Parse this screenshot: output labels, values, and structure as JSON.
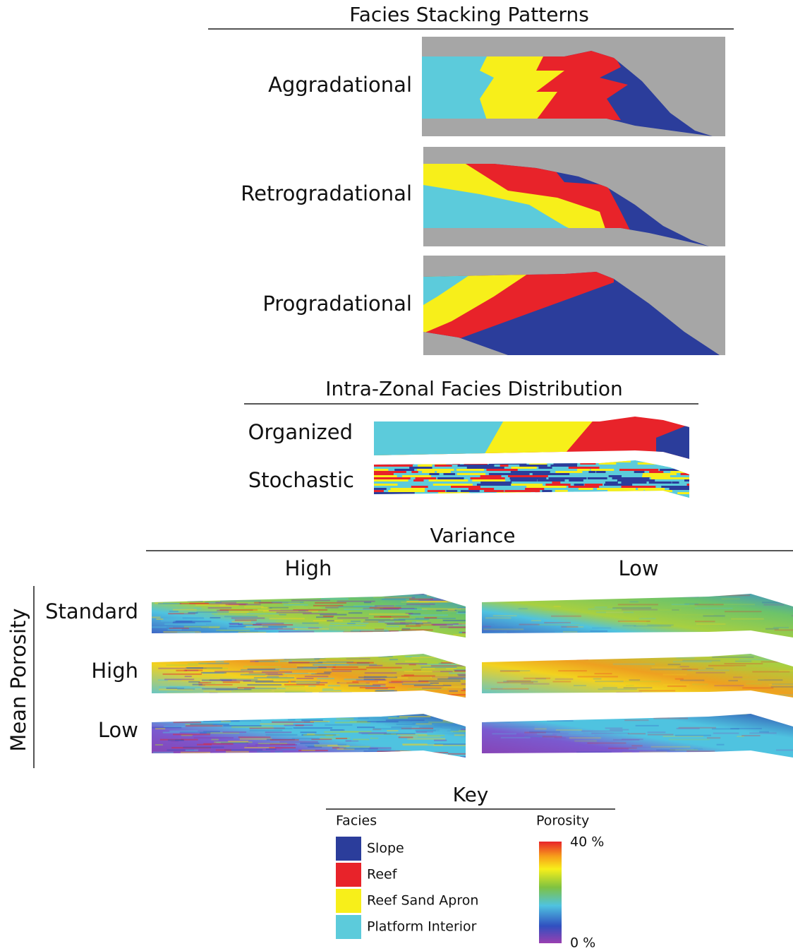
{
  "stacking": {
    "title": "Facies Stacking Patterns",
    "rows": [
      "Aggradational",
      "Retrogradational",
      "Progradational"
    ]
  },
  "distribution": {
    "title": "Intra-Zonal Facies Distribution",
    "rows": [
      "Organized",
      "Stochastic"
    ]
  },
  "porosity_grid": {
    "title": "Variance",
    "columns": [
      "High",
      "Low"
    ],
    "row_axis": "Mean Porosity",
    "rows": [
      "Standard",
      "High",
      "Low"
    ]
  },
  "key": {
    "title": "Key",
    "facies_title": "Facies",
    "facies": [
      {
        "label": "Slope",
        "color": "#2b3d9b"
      },
      {
        "label": "Reef",
        "color": "#e8232a"
      },
      {
        "label": "Reef Sand Apron",
        "color": "#f7ef1a"
      },
      {
        "label": "Platform Interior",
        "color": "#5ccbdb"
      }
    ],
    "porosity_title": "Porosity",
    "porosity_max": "40 %",
    "porosity_min": "0 %"
  }
}
